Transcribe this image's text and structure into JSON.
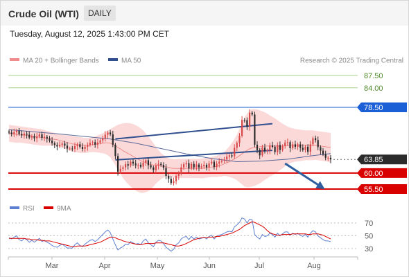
{
  "header": {
    "instrument": "Crude Oil (WTI)",
    "interval": "DAILY",
    "datetime": "Tuesday, August 12, 2025 1:43:00 PM CET"
  },
  "legend": {
    "ma20": "MA 20 + Bollinger Bands",
    "ma50": "MA 50",
    "source": "Research © 2025 Trading Central",
    "rsi": "RSI",
    "rsi_ma": "9MA"
  },
  "colors": {
    "bull": "#d84a4a",
    "bear": "#2a2a2a",
    "bollinger_band": "#f9cccc",
    "ma20": "#f08c8c",
    "ma50": "#5a6898",
    "target_line": "#a8d08d",
    "target_text": "#4f8a2a",
    "pivot": "#1a5fd6",
    "support": "#d90000",
    "current": "#2b2b2b",
    "channel": "#2f4f8f",
    "arrow": "#2f5f9f",
    "rsi": "#5d7fd1",
    "rsi_ma": "#d90000"
  },
  "chart_data": [
    {
      "type": "candlestick",
      "title": "Crude Oil (WTI)",
      "x_labels": [
        "Mar",
        "Apr",
        "May",
        "Jun",
        "Jul",
        "Aug"
      ],
      "ylim": [
        53,
        91
      ],
      "current_price": "63.85",
      "levels": [
        {
          "value": 87.5,
          "label": "87.50",
          "kind": "target"
        },
        {
          "value": 84.0,
          "label": "84.00",
          "kind": "target"
        },
        {
          "value": 78.5,
          "label": "78.50",
          "kind": "pivot"
        },
        {
          "value": 63.85,
          "label": "63.85",
          "kind": "current"
        },
        {
          "value": 60.0,
          "label": "60.00",
          "kind": "support"
        },
        {
          "value": 55.5,
          "label": "55.50",
          "kind": "support"
        }
      ],
      "ohlc_start": 71.4,
      "closes": [
        71.4,
        71.0,
        71.5,
        71.9,
        71.0,
        70.6,
        71.1,
        70.8,
        70.0,
        70.4,
        69.8,
        70.3,
        70.9,
        69.9,
        70.2,
        69.7,
        69.1,
        68.4,
        67.9,
        67.5,
        67.9,
        68.3,
        67.7,
        66.9,
        66.9,
        66.8,
        67.6,
        68.1,
        67.4,
        66.8,
        67.4,
        67.9,
        68.5,
        68.7,
        68.0,
        68.6,
        69.2,
        69.8,
        70.8,
        71.4,
        70.9,
        68.0,
        64.8,
        60.4,
        61.2,
        61.6,
        62.5,
        62.1,
        63.2,
        62.7,
        62.2,
        62.3,
        61.8,
        62.9,
        63.6,
        62.2,
        61.6,
        60.8,
        62.1,
        62.6,
        62.3,
        61.5,
        59.2,
        58.4,
        57.2,
        57.7,
        59.2,
        59.8,
        61.6,
        62.5,
        62.8,
        61.3,
        62.6,
        61.6,
        62.4,
        61.6,
        61.9,
        62.3,
        61.6,
        62.7,
        63.2,
        61.7,
        62.7,
        63.2,
        63.5,
        63.8,
        64.6,
        65.0,
        64.7,
        67.1,
        68.5,
        70.5,
        75.0,
        74.9,
        73.0,
        77.0,
        76.5,
        68.0,
        66.5,
        65.0,
        67.2,
        66.2,
        66.4,
        67.8,
        67.4,
        65.9,
        67.9,
        66.5,
        67.6,
        68.6,
        68.7,
        67.0,
        68.1,
        67.4,
        68.1,
        67.1,
        66.5,
        67.4,
        66.0,
        68.1,
        69.8,
        69.3,
        67.3,
        66.3,
        65.3,
        64.3,
        64.3,
        63.85
      ],
      "ma20": [
        71.2,
        71.1,
        71.0,
        70.9,
        70.9,
        70.8,
        70.7,
        70.6,
        70.5,
        70.4,
        70.3,
        70.2,
        70.1,
        70.0,
        69.9,
        69.8,
        69.7,
        69.6,
        69.5,
        69.4,
        69.2,
        69.0,
        68.8,
        68.6,
        68.4,
        68.2,
        68.1,
        68.0,
        67.9,
        67.8,
        67.8,
        67.8,
        67.9,
        68.0,
        68.1,
        68.2,
        68.3,
        68.4,
        68.5,
        68.5,
        68.4,
        68.1,
        67.7,
        67.2,
        66.8,
        66.3,
        65.9,
        65.5,
        65.1,
        64.7,
        64.3,
        63.9,
        63.5,
        63.2,
        62.9,
        62.6,
        62.4,
        62.3,
        62.2,
        62.1,
        62.0,
        61.9,
        61.8,
        61.6,
        61.4,
        61.3,
        61.3,
        61.3,
        61.3,
        61.3,
        61.3,
        61.3,
        61.3,
        61.3,
        61.3,
        61.3,
        61.3,
        61.4,
        61.5,
        61.6,
        61.7,
        61.8,
        61.9,
        62.1,
        62.3,
        62.6,
        62.9,
        63.2,
        63.6,
        64.0,
        64.4,
        64.9,
        65.4,
        65.9,
        66.4,
        66.8,
        67.1,
        67.2,
        67.3,
        67.4,
        67.5,
        67.6,
        67.6,
        67.6,
        67.6,
        67.6,
        67.6,
        67.6,
        67.6,
        67.7,
        67.7,
        67.8,
        67.8,
        67.8,
        67.8,
        67.8,
        67.8,
        67.8,
        67.8,
        67.8,
        67.8,
        67.8,
        67.7,
        67.6,
        67.5,
        67.4,
        67.3,
        67.1
      ],
      "bb_upper": [
        73.6,
        73.5,
        73.4,
        73.3,
        73.2,
        73.1,
        73.0,
        72.9,
        72.8,
        72.7,
        72.6,
        72.5,
        72.4,
        72.3,
        72.1,
        71.9,
        71.7,
        71.5,
        71.3,
        71.1,
        70.9,
        70.8,
        70.7,
        70.6,
        70.5,
        70.4,
        70.3,
        70.2,
        70.1,
        70.0,
        69.9,
        69.9,
        69.9,
        70.1,
        70.3,
        70.6,
        70.9,
        71.2,
        71.6,
        72.0,
        72.4,
        72.8,
        73.2,
        73.6,
        73.8,
        74.0,
        74.1,
        74.1,
        74.0,
        73.8,
        73.5,
        73.1,
        72.6,
        72.0,
        71.2,
        70.3,
        69.4,
        68.4,
        67.4,
        66.5,
        65.7,
        65.1,
        64.6,
        64.2,
        64.0,
        63.9,
        63.9,
        64.0,
        64.0,
        64.0,
        64.0,
        64.0,
        64.0,
        64.0,
        64.0,
        64.0,
        64.1,
        64.2,
        64.3,
        64.4,
        64.5,
        64.7,
        64.9,
        65.2,
        65.6,
        66.0,
        66.7,
        67.5,
        68.5,
        69.6,
        70.8,
        72.4,
        74.0,
        75.6,
        76.8,
        77.6,
        78.0,
        78.0,
        77.9,
        77.7,
        77.4,
        77.1,
        76.7,
        76.2,
        75.8,
        75.4,
        74.9,
        74.4,
        73.9,
        73.5,
        73.1,
        72.8,
        72.6,
        72.4,
        72.3,
        72.2,
        72.1,
        72.0,
        72.0,
        72.0,
        72.0,
        71.9,
        71.8,
        71.7,
        71.6,
        71.5,
        71.4,
        71.3
      ],
      "bb_lower": [
        68.8,
        68.7,
        68.6,
        68.5,
        68.6,
        68.5,
        68.4,
        68.3,
        68.2,
        68.1,
        68.0,
        67.9,
        67.8,
        67.7,
        67.7,
        67.7,
        67.7,
        67.7,
        67.7,
        67.7,
        67.5,
        67.2,
        66.9,
        66.6,
        66.3,
        66.0,
        65.9,
        65.8,
        65.7,
        65.6,
        65.7,
        65.7,
        65.9,
        65.9,
        65.9,
        65.8,
        65.7,
        65.6,
        65.4,
        65.0,
        64.4,
        63.4,
        62.2,
        60.8,
        59.8,
        58.6,
        57.7,
        56.9,
        56.2,
        55.6,
        55.1,
        54.7,
        54.4,
        54.4,
        54.6,
        54.9,
        55.4,
        56.2,
        57.0,
        57.7,
        58.3,
        58.7,
        59.0,
        59.0,
        58.8,
        58.7,
        58.7,
        58.6,
        58.6,
        58.6,
        58.6,
        58.6,
        58.6,
        58.6,
        58.6,
        58.6,
        58.5,
        58.6,
        58.7,
        58.8,
        58.9,
        58.9,
        58.9,
        59.0,
        59.0,
        59.2,
        59.1,
        58.9,
        58.7,
        58.4,
        58.0,
        57.4,
        56.8,
        56.2,
        56.0,
        56.0,
        56.2,
        56.4,
        56.7,
        57.1,
        57.6,
        58.1,
        58.5,
        59.0,
        59.4,
        59.8,
        60.3,
        60.8,
        61.3,
        61.9,
        62.3,
        62.8,
        63.0,
        63.2,
        63.3,
        63.4,
        63.5,
        63.6,
        63.6,
        63.6,
        63.6,
        63.7,
        63.6,
        63.5,
        63.4,
        63.3,
        63.2,
        62.9
      ],
      "ma50_points": [
        [
          0,
          72.2
        ],
        [
          10,
          71.6
        ],
        [
          20,
          71.0
        ],
        [
          30,
          70.3
        ],
        [
          40,
          69.6
        ],
        [
          50,
          68.4
        ],
        [
          60,
          66.9
        ],
        [
          70,
          65.4
        ],
        [
          80,
          64.1
        ],
        [
          90,
          63.2
        ],
        [
          100,
          63.4
        ],
        [
          110,
          63.9
        ],
        [
          120,
          64.9
        ],
        [
          127,
          65.5
        ]
      ],
      "channel": {
        "upper": [
          [
            42,
            69.6
          ],
          [
            104,
            73.9
          ]
        ],
        "lower": [
          [
            42,
            63.7
          ],
          [
            104,
            66.4
          ]
        ]
      },
      "forecast_arrow": {
        "from": [
          109,
          62.7
        ],
        "to": [
          124,
          55.8
        ]
      }
    },
    {
      "type": "line",
      "title": "RSI",
      "x_labels": [
        "Mar",
        "Apr",
        "May",
        "Jun",
        "Jul",
        "Aug"
      ],
      "yticks": [
        30,
        50,
        70
      ],
      "ylim": [
        20,
        82
      ],
      "series": [
        {
          "name": "RSI",
          "values": [
            47,
            45,
            48,
            50,
            44,
            42,
            46,
            44,
            40,
            43,
            40,
            43,
            46,
            41,
            43,
            40,
            38,
            35,
            33,
            32,
            35,
            37,
            34,
            31,
            31,
            31,
            36,
            39,
            35,
            33,
            37,
            40,
            43,
            44,
            41,
            44,
            48,
            52,
            56,
            59,
            55,
            45,
            36,
            28,
            31,
            33,
            37,
            36,
            41,
            39,
            37,
            38,
            36,
            42,
            45,
            39,
            36,
            33,
            40,
            43,
            42,
            38,
            32,
            29,
            26,
            29,
            36,
            39,
            45,
            48,
            49,
            44,
            49,
            45,
            48,
            45,
            46,
            48,
            45,
            49,
            51,
            45,
            49,
            51,
            52,
            54,
            56,
            57,
            56,
            64,
            67,
            71,
            78,
            76,
            70,
            76,
            75,
            52,
            48,
            45,
            52,
            49,
            50,
            54,
            52,
            48,
            54,
            50,
            53,
            56,
            56,
            51,
            54,
            52,
            54,
            51,
            49,
            52,
            48,
            54,
            58,
            56,
            50,
            47,
            44,
            42,
            42,
            41
          ]
        },
        {
          "name": "9MA",
          "values": [
            46,
            46,
            46,
            46,
            46,
            46,
            46,
            45,
            45,
            44,
            44,
            44,
            43,
            43,
            42,
            42,
            42,
            41,
            40,
            39,
            38,
            37,
            36,
            35,
            34,
            33,
            33,
            34,
            34,
            34,
            34,
            35,
            36,
            37,
            38,
            39,
            40,
            42,
            44,
            46,
            48,
            48,
            47,
            45,
            44,
            42,
            41,
            40,
            39,
            38,
            37,
            36,
            36,
            37,
            38,
            38,
            38,
            38,
            39,
            39,
            39,
            39,
            38,
            37,
            36,
            35,
            34,
            34,
            35,
            36,
            38,
            40,
            42,
            44,
            45,
            46,
            47,
            47,
            47,
            48,
            48,
            48,
            49,
            49,
            50,
            51,
            52,
            53,
            54,
            56,
            58,
            60,
            63,
            66,
            68,
            70,
            72,
            71,
            69,
            67,
            65,
            62,
            58,
            55,
            53,
            52,
            51,
            51,
            52,
            52,
            52,
            52,
            53,
            53,
            53,
            53,
            53,
            53,
            52,
            52,
            53,
            53,
            53,
            52,
            51,
            49,
            47,
            45
          ]
        }
      ]
    }
  ]
}
